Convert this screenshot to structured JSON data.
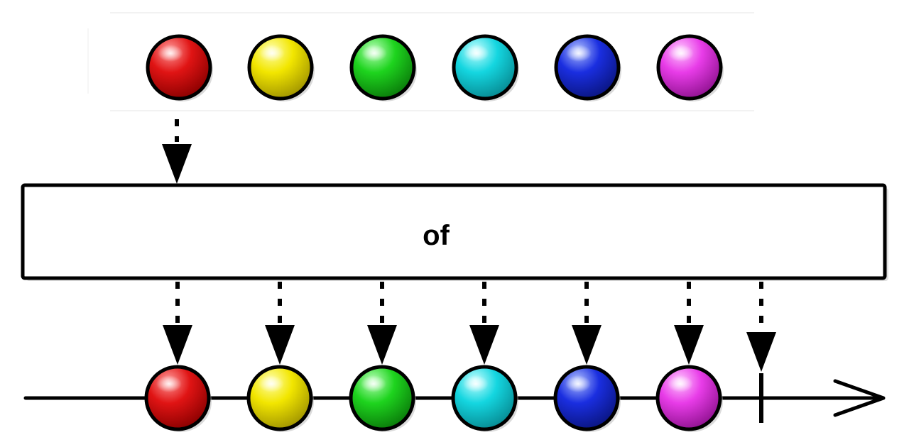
{
  "operator": {
    "label": "of"
  },
  "input_items": [
    {
      "color_name": "red",
      "base": "#e01414",
      "light": "#ff9a9a",
      "dark": "#8a0000"
    },
    {
      "color_name": "yellow",
      "base": "#f2e600",
      "light": "#ffffb0",
      "dark": "#a09400"
    },
    {
      "color_name": "green",
      "base": "#1ed41e",
      "light": "#b8ffb8",
      "dark": "#0a7a0a"
    },
    {
      "color_name": "cyan",
      "base": "#14d6e0",
      "light": "#c8ffff",
      "dark": "#078a92"
    },
    {
      "color_name": "blue",
      "base": "#1a2ee0",
      "light": "#b0c0ff",
      "dark": "#0a1580"
    },
    {
      "color_name": "magenta",
      "base": "#e83ce8",
      "light": "#ffc8ff",
      "dark": "#901290"
    }
  ],
  "output_items": [
    {
      "color_name": "red",
      "base": "#e01414",
      "light": "#ff9a9a",
      "dark": "#8a0000"
    },
    {
      "color_name": "yellow",
      "base": "#f2e600",
      "light": "#ffffb0",
      "dark": "#a09400"
    },
    {
      "color_name": "green",
      "base": "#1ed41e",
      "light": "#b8ffb8",
      "dark": "#0a7a0a"
    },
    {
      "color_name": "cyan",
      "base": "#14d6e0",
      "light": "#c8ffff",
      "dark": "#078a92"
    },
    {
      "color_name": "blue",
      "base": "#1a2ee0",
      "light": "#b0c0ff",
      "dark": "#0a1580"
    },
    {
      "color_name": "magenta",
      "base": "#e83ce8",
      "light": "#ffc8ff",
      "dark": "#901290"
    }
  ],
  "output_completes": true,
  "colors": {
    "stroke": "#000000",
    "background": "#ffffff"
  }
}
